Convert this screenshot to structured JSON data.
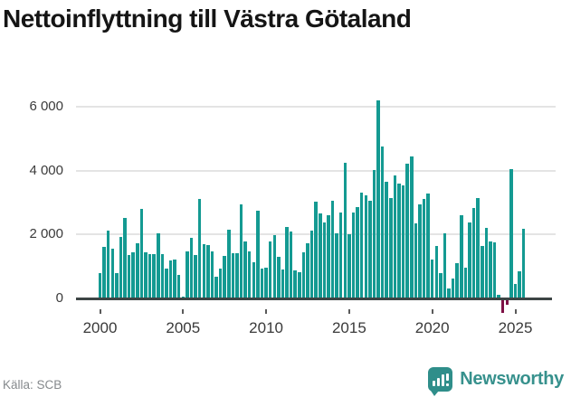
{
  "title": "Nettoinflyttning till Västra Götaland",
  "source": "Källa: SCB",
  "brand": {
    "name": "Newsworthy",
    "icon": "newsworthy-speech-bubble-chart-icon",
    "color": "#37918d"
  },
  "colors": {
    "bar_positive": "#149a92",
    "bar_negative": "#7e1146",
    "gridline": "#e4e4e4",
    "axis_line": "#3d4545",
    "tick_text": "#3a3a3a",
    "source_text": "#85898c",
    "title_text": "#151515"
  },
  "chart_data": {
    "type": "bar",
    "title": "Nettoinflyttning till Västra Götaland",
    "frequency": "quarterly",
    "start": {
      "year": 2000,
      "quarter": 1
    },
    "end": {
      "year": 2025,
      "quarter": 3
    },
    "grid": "horizontal",
    "legend": "none",
    "ylim": [
      -620,
      6650
    ],
    "y_ticks": [
      {
        "value": 0,
        "label": "0"
      },
      {
        "value": 2000,
        "label": "2 000"
      },
      {
        "value": 4000,
        "label": "4 000"
      },
      {
        "value": 6000,
        "label": "6 000"
      }
    ],
    "x_ticks": [
      {
        "year": 2000,
        "label": "2000"
      },
      {
        "year": 2005,
        "label": "2005"
      },
      {
        "year": 2010,
        "label": "2010"
      },
      {
        "year": 2015,
        "label": "2015"
      },
      {
        "year": 2020,
        "label": "2020"
      },
      {
        "year": 2025,
        "label": "2025"
      }
    ],
    "years": [
      {
        "year": 2000,
        "values": [
          800,
          1620,
          2130,
          1560
        ]
      },
      {
        "year": 2001,
        "values": [
          790,
          1910,
          2530,
          1370
        ]
      },
      {
        "year": 2002,
        "values": [
          1430,
          1720,
          2800,
          1450
        ]
      },
      {
        "year": 2003,
        "values": [
          1400,
          1400,
          2050,
          1400
        ]
      },
      {
        "year": 2004,
        "values": [
          920,
          1180,
          1210,
          730
        ]
      },
      {
        "year": 2005,
        "values": [
          60,
          1470,
          1900,
          1370
        ]
      },
      {
        "year": 2006,
        "values": [
          3100,
          1710,
          1670,
          1480
        ]
      },
      {
        "year": 2007,
        "values": [
          670,
          930,
          1320,
          2140
        ]
      },
      {
        "year": 2008,
        "values": [
          1410,
          1410,
          2950,
          1770
        ]
      },
      {
        "year": 2009,
        "values": [
          1460,
          1130,
          2740,
          930
        ]
      },
      {
        "year": 2010,
        "values": [
          950,
          1790,
          1980,
          1300
        ]
      },
      {
        "year": 2011,
        "values": [
          910,
          2230,
          2090,
          880
        ]
      },
      {
        "year": 2012,
        "values": [
          820,
          1440,
          1720,
          2120
        ]
      },
      {
        "year": 2013,
        "values": [
          3020,
          2650,
          2370,
          2600
        ]
      },
      {
        "year": 2014,
        "values": [
          3050,
          2040,
          2700,
          4250
        ]
      },
      {
        "year": 2015,
        "values": [
          2020,
          2700,
          2870,
          3320
        ]
      },
      {
        "year": 2016,
        "values": [
          3220,
          3060,
          4020,
          6200
        ]
      },
      {
        "year": 2017,
        "values": [
          4750,
          3640,
          3130,
          3860
        ]
      },
      {
        "year": 2018,
        "values": [
          3580,
          3530,
          4210,
          4450
        ]
      },
      {
        "year": 2019,
        "values": [
          2350,
          2940,
          3110,
          3290
        ]
      },
      {
        "year": 2020,
        "values": [
          1220,
          1650,
          800,
          2040
        ]
      },
      {
        "year": 2021,
        "values": [
          300,
          610,
          1090,
          2610
        ]
      },
      {
        "year": 2022,
        "values": [
          950,
          2380,
          2840,
          3150
        ]
      },
      {
        "year": 2023,
        "values": [
          1650,
          2210,
          1770,
          1740
        ]
      },
      {
        "year": 2024,
        "values": [
          100,
          -420,
          -160,
          4050
        ]
      },
      {
        "year": 2025,
        "values": [
          450,
          850,
          2190
        ]
      }
    ]
  }
}
